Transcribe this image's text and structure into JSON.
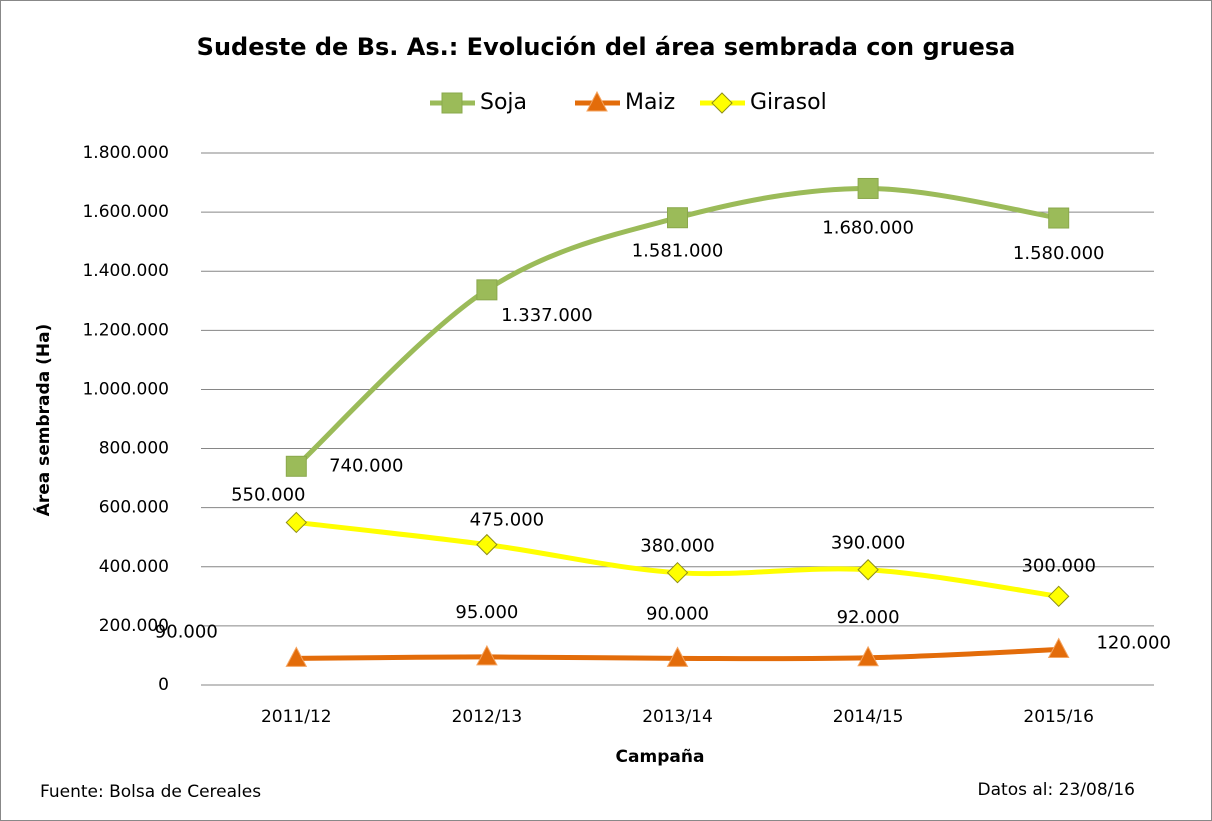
{
  "chart_data": {
    "type": "line",
    "title": "Sudeste de Bs. As.: Evolución del área sembrada con gruesa",
    "y_label": "Área sembrada (Ha)",
    "x_label": "Campaña",
    "source": "Fuente: Bolsa de Cereales",
    "date_note": "Datos al: 23/08/16",
    "categories": [
      "2011/12",
      "2012/13",
      "2013/14",
      "2014/15",
      "2015/16"
    ],
    "series": [
      {
        "name": "Soja",
        "color": "#9bbb59",
        "marker": "square",
        "values": [
          740000,
          1337000,
          1581000,
          1680000,
          1580000
        ],
        "value_labels": [
          "740.000",
          "1.337.000",
          "1.581.000",
          "1.680.000",
          "1.580.000"
        ]
      },
      {
        "name": "Maiz",
        "color": "#e36c0a",
        "marker": "triangle",
        "values": [
          90000,
          95000,
          90000,
          92000,
          120000
        ],
        "value_labels": [
          "90.000",
          "95.000",
          "90.000",
          "92.000",
          "120.000"
        ]
      },
      {
        "name": "Girasol",
        "color": "#ffff00",
        "marker": "diamond",
        "values": [
          550000,
          475000,
          380000,
          390000,
          300000
        ],
        "value_labels": [
          "550.000",
          "475.000",
          "380.000",
          "390.000",
          "300.000"
        ]
      }
    ],
    "ylim": [
      0,
      1800000
    ],
    "yticks": [
      0,
      {
        "value": 200000,
        "label": "200.000"
      },
      {
        "value": 400000,
        "label": "400.000"
      },
      {
        "value": 600000,
        "label": "600.000"
      },
      {
        "value": 800000,
        "label": "800.000"
      },
      {
        "value": 1000000,
        "label": "1.000.000"
      },
      {
        "value": 1200000,
        "label": "1.200.000"
      },
      {
        "value": 1400000,
        "label": "1.400.000"
      },
      {
        "value": 1600000,
        "label": "1.600.000"
      },
      {
        "value": 1800000,
        "label": "1.800.000"
      }
    ],
    "grid": true,
    "legend": "top",
    "smooth": true
  }
}
